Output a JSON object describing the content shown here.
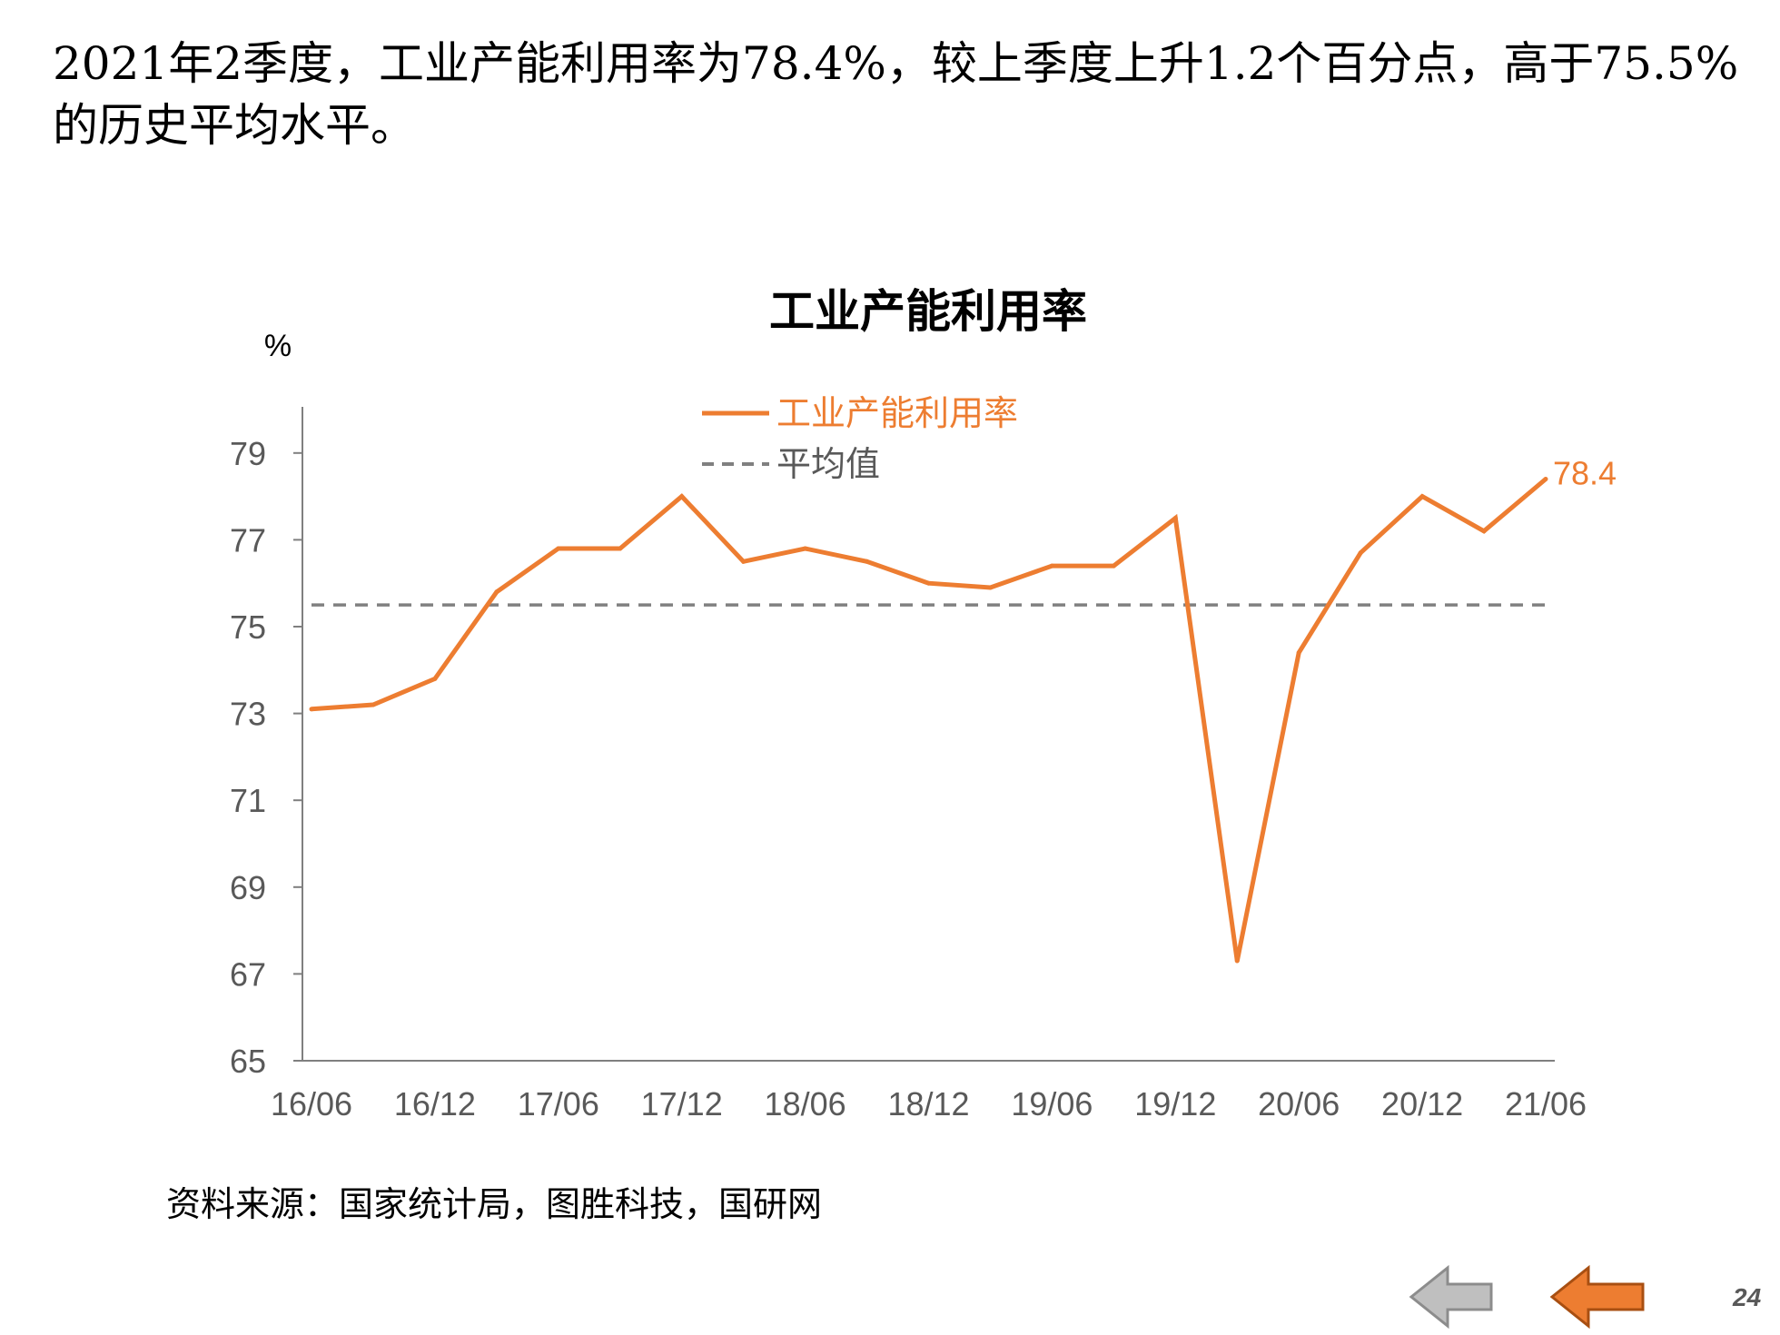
{
  "headline": "2021年2季度，工业产能利用率为78.4%，较上季度上升1.2个百分点，高于75.5%的历史平均水平。",
  "source": "资料来源：国家统计局，图胜科技，国研网",
  "page_number": "24",
  "colors": {
    "series": "#ED7D31",
    "average": "#808080",
    "axis": "#7f7f7f",
    "tick_text": "#595959"
  },
  "nav": {
    "prev_icon": "arrow-left-gray-icon",
    "next_icon": "arrow-left-orange-icon"
  },
  "chart_data": {
    "type": "line",
    "title": "工业产能利用率",
    "ylabel": "%",
    "ylim": [
      65,
      80
    ],
    "yticks": [
      65,
      67,
      69,
      71,
      73,
      75,
      77,
      79
    ],
    "xtick_labels": [
      "16/06",
      "16/12",
      "17/06",
      "17/12",
      "18/06",
      "18/12",
      "19/06",
      "19/12",
      "20/06",
      "20/12",
      "21/06"
    ],
    "x": [
      "16/06",
      "16/09",
      "16/12",
      "17/03",
      "17/06",
      "17/09",
      "17/12",
      "18/03",
      "18/06",
      "18/09",
      "18/12",
      "19/03",
      "19/06",
      "19/09",
      "19/12",
      "20/03",
      "20/06",
      "20/09",
      "20/12",
      "21/03",
      "21/06"
    ],
    "series": [
      {
        "name": "工业产能利用率",
        "values": [
          73.1,
          73.2,
          73.8,
          75.8,
          76.8,
          76.8,
          78.0,
          76.5,
          76.8,
          76.5,
          76.0,
          75.9,
          76.4,
          76.4,
          77.5,
          67.3,
          74.4,
          76.7,
          78.0,
          77.2,
          78.4
        ]
      },
      {
        "name": "平均值",
        "values": [
          75.5,
          75.5,
          75.5,
          75.5,
          75.5,
          75.5,
          75.5,
          75.5,
          75.5,
          75.5,
          75.5,
          75.5,
          75.5,
          75.5,
          75.5,
          75.5,
          75.5,
          75.5,
          75.5,
          75.5,
          75.5
        ]
      }
    ],
    "end_label": "78.4",
    "legend": "top-center",
    "grid": false
  }
}
